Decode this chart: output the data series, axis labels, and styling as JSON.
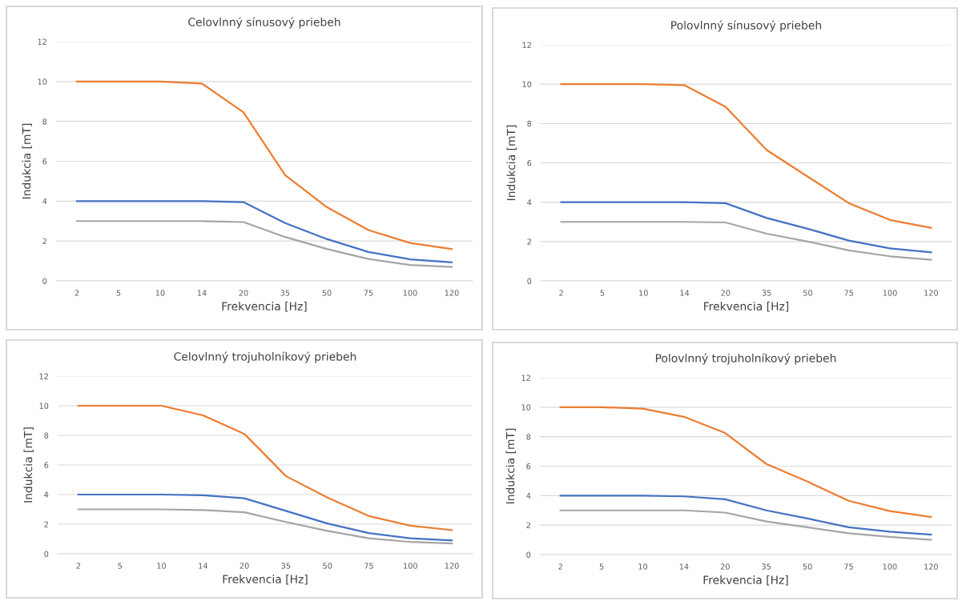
{
  "chart_data": [
    {
      "type": "line",
      "title": "Celovlnný sínusový priebeh",
      "xlabel": "Frekvencia [Hz]",
      "ylabel": "Indukcia [mT]",
      "categories": [
        "2",
        "5",
        "10",
        "14",
        "20",
        "35",
        "50",
        "75",
        "100",
        "120"
      ],
      "ylim": [
        0,
        12
      ],
      "yticks": [
        0,
        2,
        4,
        6,
        8,
        10,
        12
      ],
      "grid": "y",
      "legend": false,
      "series": [
        {
          "color": "#ed7d31",
          "values": [
            10,
            10,
            10,
            9.9,
            8.45,
            5.3,
            3.7,
            2.55,
            1.9,
            1.6
          ]
        },
        {
          "color": "#4472c4",
          "values": [
            4,
            4,
            4,
            4,
            3.95,
            2.9,
            2.1,
            1.45,
            1.08,
            0.93
          ]
        },
        {
          "color": "#a5a5a5",
          "values": [
            3,
            3,
            3,
            3,
            2.95,
            2.2,
            1.6,
            1.1,
            0.8,
            0.7
          ]
        }
      ]
    },
    {
      "type": "line",
      "title": "Polovlnný sínusový priebeh",
      "xlabel": "Frekvencia [Hz]",
      "ylabel": "Indukcia [mT]",
      "categories": [
        "2",
        "5",
        "10",
        "14",
        "20",
        "35",
        "50",
        "75",
        "100",
        "120"
      ],
      "ylim": [
        0,
        12
      ],
      "yticks": [
        0,
        2,
        4,
        6,
        8,
        10,
        12
      ],
      "grid": "y",
      "legend": false,
      "series": [
        {
          "color": "#ed7d31",
          "values": [
            10,
            10,
            10,
            9.95,
            8.85,
            6.65,
            5.3,
            3.95,
            3.1,
            2.7
          ]
        },
        {
          "color": "#4472c4",
          "values": [
            4,
            4,
            4,
            4,
            3.95,
            3.2,
            2.65,
            2.05,
            1.65,
            1.45
          ]
        },
        {
          "color": "#a5a5a5",
          "values": [
            3,
            3,
            3,
            3,
            2.97,
            2.4,
            2.0,
            1.55,
            1.25,
            1.08
          ]
        }
      ]
    },
    {
      "type": "line",
      "title": "Celovlnný trojuholníkový priebeh",
      "xlabel": "Frekvencia [Hz]",
      "ylabel": "Indukcia [mT]",
      "categories": [
        "2",
        "5",
        "10",
        "14",
        "20",
        "35",
        "50",
        "75",
        "100",
        "120"
      ],
      "ylim": [
        0,
        12
      ],
      "yticks": [
        0,
        2,
        4,
        6,
        8,
        10,
        12
      ],
      "grid": "y",
      "legend": false,
      "series": [
        {
          "color": "#ed7d31",
          "values": [
            10,
            10,
            10,
            9.35,
            8.1,
            5.25,
            3.8,
            2.55,
            1.9,
            1.6
          ]
        },
        {
          "color": "#4472c4",
          "values": [
            4,
            4,
            4,
            3.95,
            3.75,
            2.9,
            2.05,
            1.4,
            1.05,
            0.9
          ]
        },
        {
          "color": "#a5a5a5",
          "values": [
            3,
            3,
            3,
            2.95,
            2.8,
            2.15,
            1.55,
            1.05,
            0.8,
            0.7
          ]
        }
      ]
    },
    {
      "type": "line",
      "title": "Polovlnný trojuholníkový priebeh",
      "xlabel": "Frekvencia [Hz]",
      "ylabel": "Indukcia [mT]",
      "categories": [
        "2",
        "5",
        "10",
        "14",
        "20",
        "35",
        "50",
        "75",
        "100",
        "120"
      ],
      "ylim": [
        0,
        12
      ],
      "yticks": [
        0,
        2,
        4,
        6,
        8,
        10,
        12
      ],
      "grid": "y",
      "legend": false,
      "series": [
        {
          "color": "#ed7d31",
          "values": [
            10,
            10,
            9.9,
            9.35,
            8.25,
            6.15,
            4.95,
            3.65,
            2.95,
            2.55
          ]
        },
        {
          "color": "#4472c4",
          "values": [
            4,
            4,
            4,
            3.95,
            3.75,
            3.0,
            2.45,
            1.85,
            1.55,
            1.35
          ]
        },
        {
          "color": "#a5a5a5",
          "values": [
            3,
            3,
            3,
            3,
            2.85,
            2.25,
            1.85,
            1.45,
            1.2,
            1.0
          ]
        }
      ]
    }
  ]
}
